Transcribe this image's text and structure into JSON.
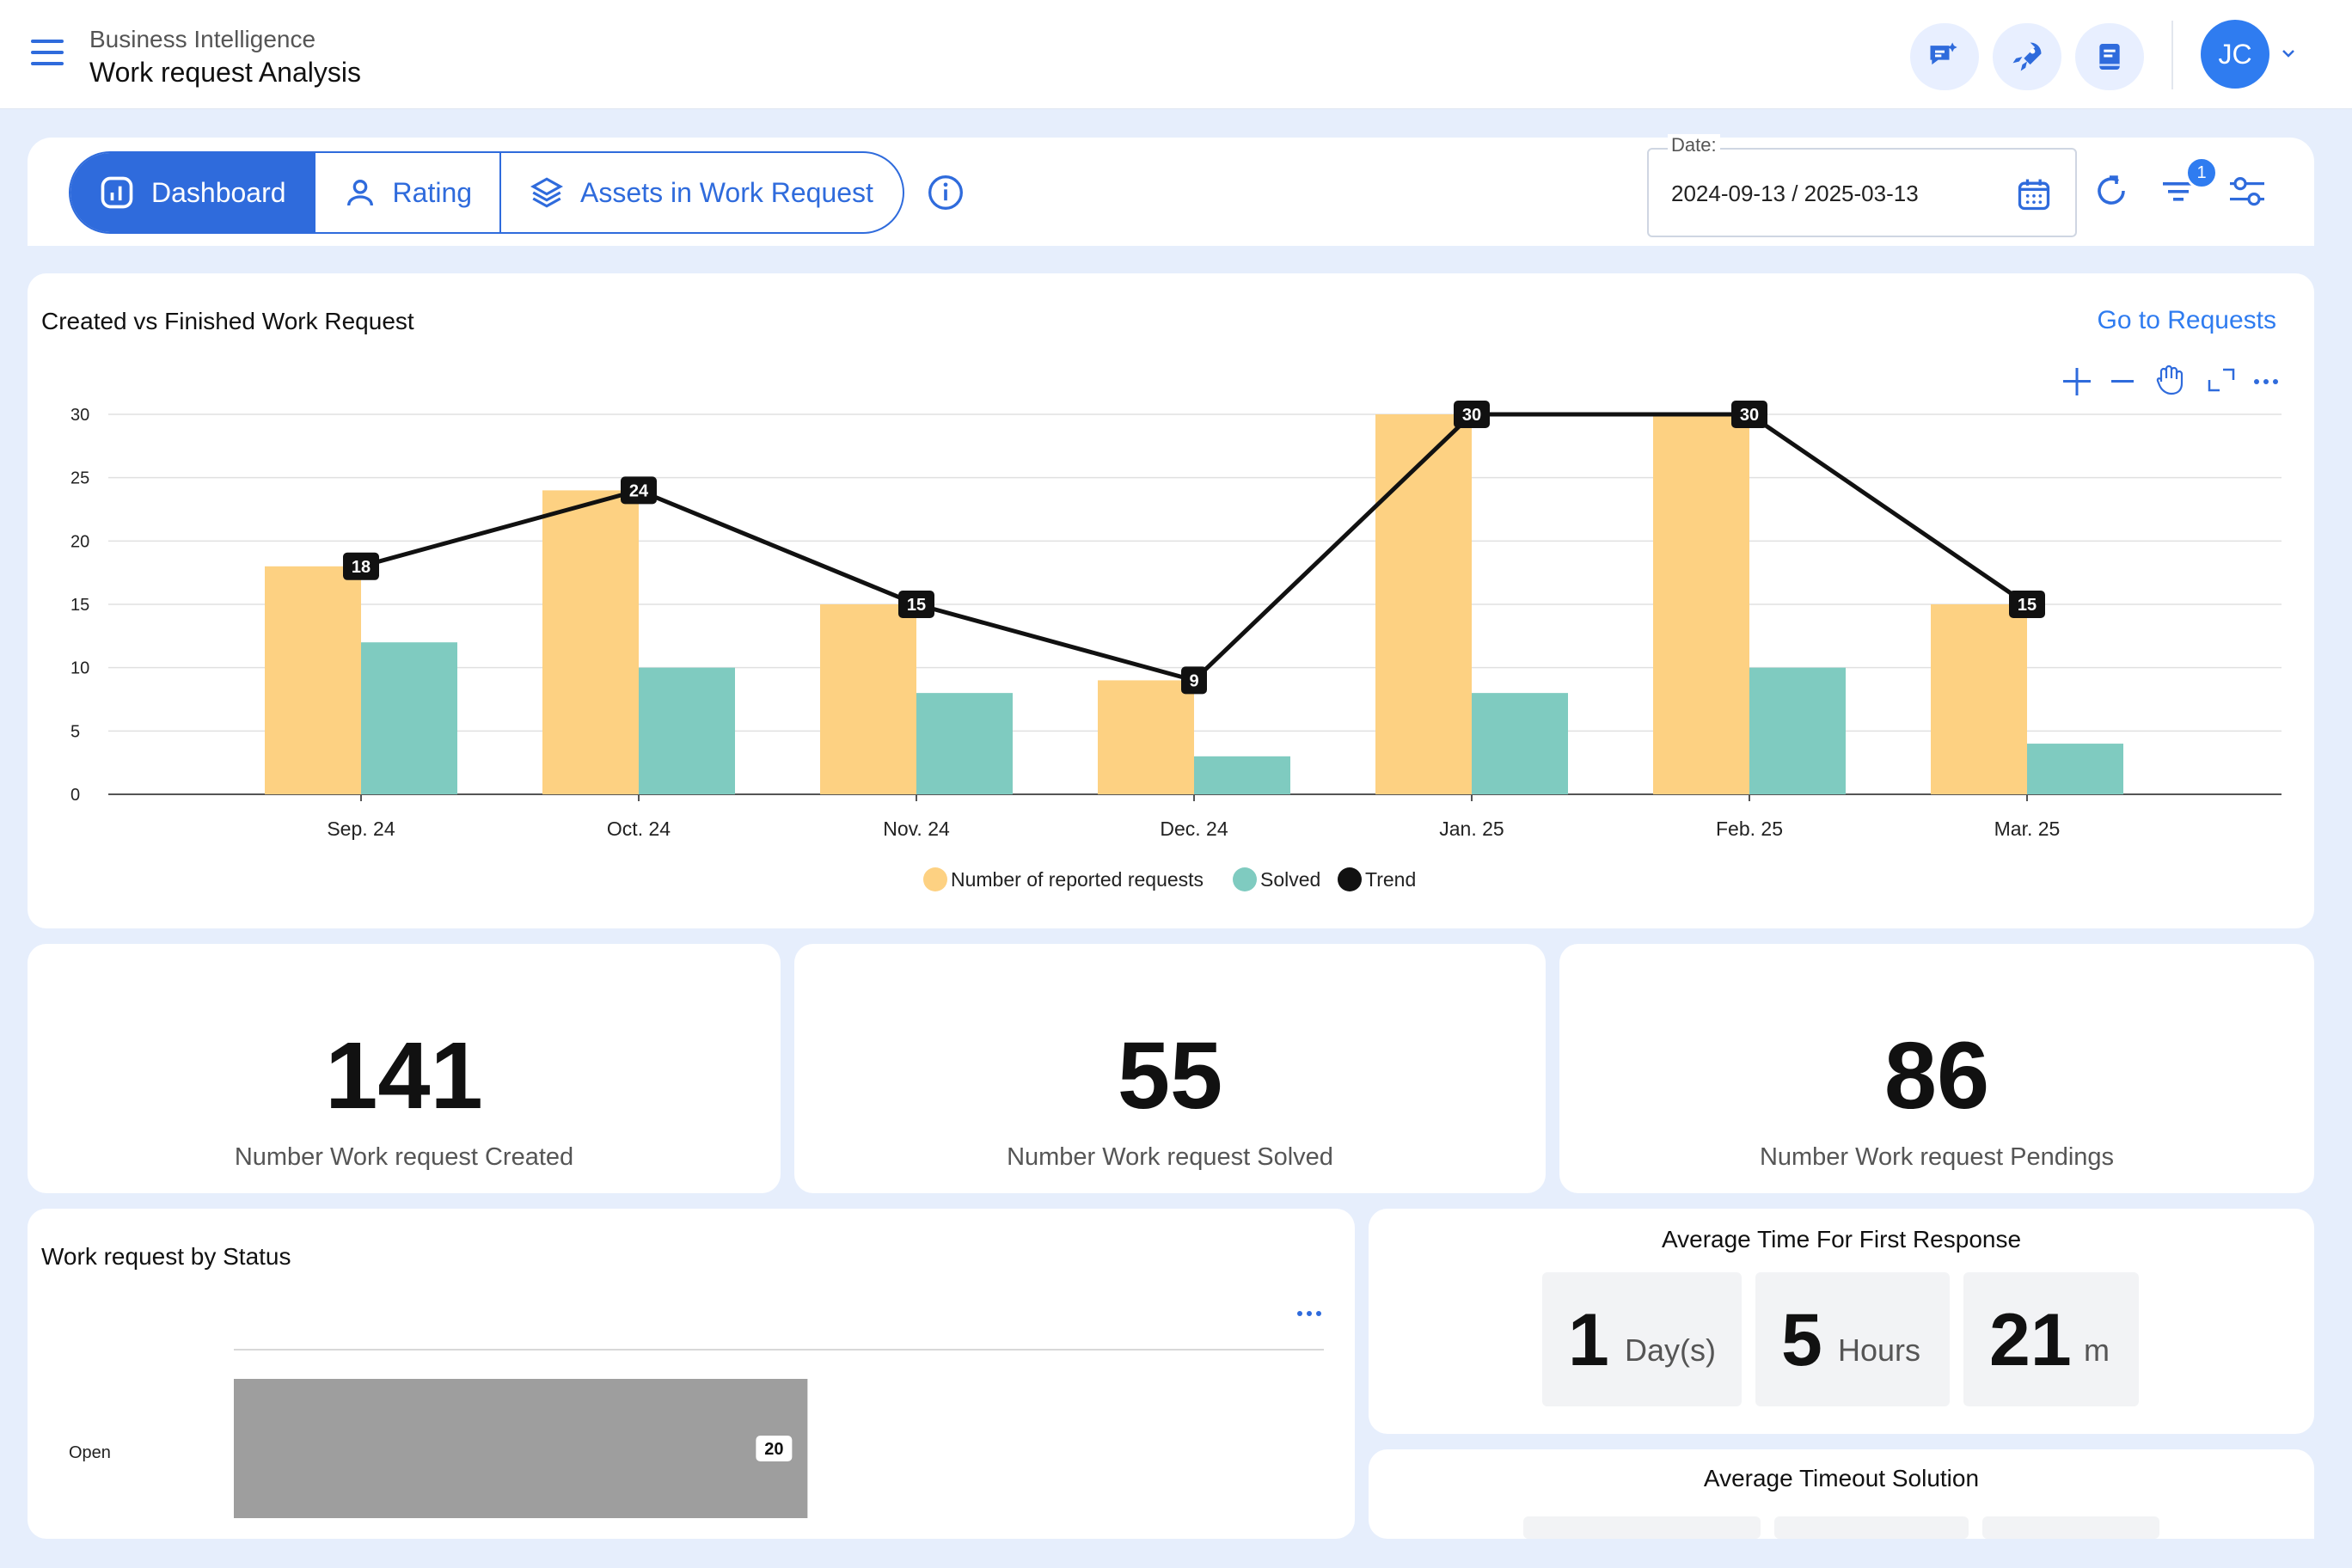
{
  "header": {
    "subtitle": "Business Intelligence",
    "title": "Work request Analysis",
    "avatar_initials": "JC"
  },
  "tabs": [
    {
      "label": "Dashboard",
      "icon": "chart-icon",
      "active": true
    },
    {
      "label": "Rating",
      "icon": "user-icon",
      "active": false
    },
    {
      "label": "Assets in Work Request",
      "icon": "layers-icon",
      "active": false
    }
  ],
  "date_filter": {
    "label": "Date:",
    "value": "2024-09-13 / 2025-03-13"
  },
  "filter_badge": "1",
  "colors": {
    "accent": "#2f6bdc",
    "reported": "#fdd182",
    "solved": "#7fcbc0",
    "trend": "#111111",
    "status_bar": "#9e9e9e"
  },
  "main_chart": {
    "title": "Created vs Finished Work Request",
    "link": "Go to Requests",
    "toolbar_icons": [
      "plus-icon",
      "minus-icon",
      "hand-icon",
      "expand-icon",
      "more-icon"
    ]
  },
  "chart_data": [
    {
      "type": "bar",
      "title": "Created vs Finished Work Request",
      "categories": [
        "Sep. 24",
        "Oct. 24",
        "Nov. 24",
        "Dec. 24",
        "Jan. 25",
        "Feb. 25",
        "Mar. 25"
      ],
      "series": [
        {
          "name": "Number of reported requests",
          "type": "bar",
          "values": [
            18,
            24,
            15,
            9,
            30,
            30,
            15
          ]
        },
        {
          "name": "Solved",
          "type": "bar",
          "values": [
            12,
            10,
            8,
            3,
            8,
            10,
            4
          ]
        },
        {
          "name": "Trend",
          "type": "line",
          "values": [
            18,
            24,
            15,
            9,
            30,
            30,
            15
          ]
        }
      ],
      "y_ticks": [
        0,
        5,
        10,
        15,
        20,
        25,
        30
      ],
      "ylim": [
        0,
        30
      ],
      "grid": true,
      "legend": "bottom-center"
    },
    {
      "type": "bar",
      "title": "Work request by Status",
      "orientation": "horizontal",
      "categories": [
        "Open"
      ],
      "values": [
        20
      ],
      "xlim": [
        0,
        38
      ]
    }
  ],
  "kpis": [
    {
      "value": "141",
      "label": "Number Work request Created"
    },
    {
      "value": "55",
      "label": "Number Work request Solved"
    },
    {
      "value": "86",
      "label": "Number Work request Pendings"
    }
  ],
  "status_chart": {
    "title": "Work request by Status"
  },
  "first_response": {
    "title": "Average Time For First Response",
    "parts": [
      {
        "value": "1",
        "unit": "Day(s)"
      },
      {
        "value": "5",
        "unit": "Hours"
      },
      {
        "value": "21",
        "unit": "m"
      }
    ]
  },
  "timeout_solution": {
    "title": "Average Timeout Solution"
  }
}
